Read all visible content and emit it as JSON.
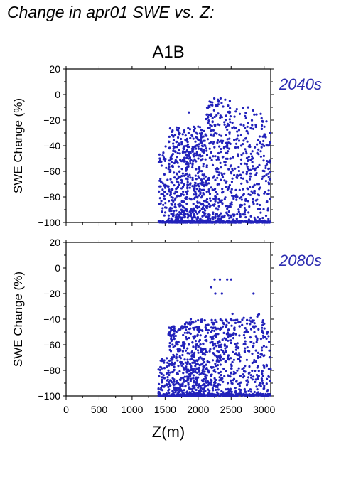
{
  "page": {
    "title": "Change in apr01 SWE vs. Z:"
  },
  "colors": {
    "points": "#2222bb",
    "period_label": "#2b2bb0",
    "axes": "#000000"
  },
  "chart_data": [
    {
      "type": "scatter",
      "scenario": "A1B",
      "period": "2040s",
      "xlabel": "",
      "ylabel": "SWE Change (%)",
      "xlim": [
        0,
        3100
      ],
      "ylim": [
        -100,
        20
      ],
      "x_ticks": [],
      "y_ticks": [
        20,
        0,
        -20,
        -40,
        -60,
        -80,
        -100
      ],
      "x_range_of_points": [
        1400,
        3100
      ],
      "clusters": [
        {
          "x": [
            1400,
            1550
          ],
          "y": [
            -100,
            -40
          ],
          "n": 60
        },
        {
          "x": [
            1550,
            1800
          ],
          "y": [
            -100,
            -25
          ],
          "n": 260
        },
        {
          "x": [
            1800,
            2100
          ],
          "y": [
            -100,
            -25
          ],
          "n": 330
        },
        {
          "x": [
            2100,
            2500
          ],
          "y": [
            -100,
            -5
          ],
          "n": 330
        },
        {
          "x": [
            2500,
            2850
          ],
          "y": [
            -100,
            -10
          ],
          "n": 200
        },
        {
          "x": [
            2850,
            3100
          ],
          "y": [
            -100,
            -15
          ],
          "n": 120
        }
      ],
      "notable_points": [
        {
          "x": 2245,
          "y": -3
        },
        {
          "x": 2300,
          "y": -4
        },
        {
          "x": 2340,
          "y": -3
        },
        {
          "x": 2410,
          "y": -4
        },
        {
          "x": 2480,
          "y": -5
        },
        {
          "x": 1860,
          "y": -14
        },
        {
          "x": 1405,
          "y": -53
        },
        {
          "x": 1420,
          "y": -50
        }
      ]
    },
    {
      "type": "scatter",
      "scenario": "A1B",
      "period": "2080s",
      "xlabel": "Z(m)",
      "ylabel": "SWE Change (%)",
      "xlim": [
        0,
        3100
      ],
      "ylim": [
        -100,
        20
      ],
      "x_ticks": [
        0,
        500,
        1000,
        1500,
        2000,
        2500,
        3000
      ],
      "y_ticks": [
        20,
        0,
        -20,
        -40,
        -60,
        -80,
        -100
      ],
      "x_range_of_points": [
        1400,
        3100
      ],
      "clusters": [
        {
          "x": [
            1400,
            1550
          ],
          "y": [
            -100,
            -70
          ],
          "n": 60
        },
        {
          "x": [
            1550,
            1800
          ],
          "y": [
            -100,
            -45
          ],
          "n": 230
        },
        {
          "x": [
            1800,
            2100
          ],
          "y": [
            -100,
            -40
          ],
          "n": 300
        },
        {
          "x": [
            2100,
            2500
          ],
          "y": [
            -100,
            -40
          ],
          "n": 280
        },
        {
          "x": [
            2500,
            2850
          ],
          "y": [
            -100,
            -35
          ],
          "n": 170
        },
        {
          "x": [
            2850,
            3100
          ],
          "y": [
            -100,
            -35
          ],
          "n": 100
        }
      ],
      "notable_points": [
        {
          "x": 2250,
          "y": -9
        },
        {
          "x": 2330,
          "y": -9
        },
        {
          "x": 2440,
          "y": -9
        },
        {
          "x": 2500,
          "y": -9
        },
        {
          "x": 2260,
          "y": -20
        },
        {
          "x": 2360,
          "y": -20
        },
        {
          "x": 2840,
          "y": -20
        },
        {
          "x": 2200,
          "y": -15
        }
      ]
    }
  ]
}
